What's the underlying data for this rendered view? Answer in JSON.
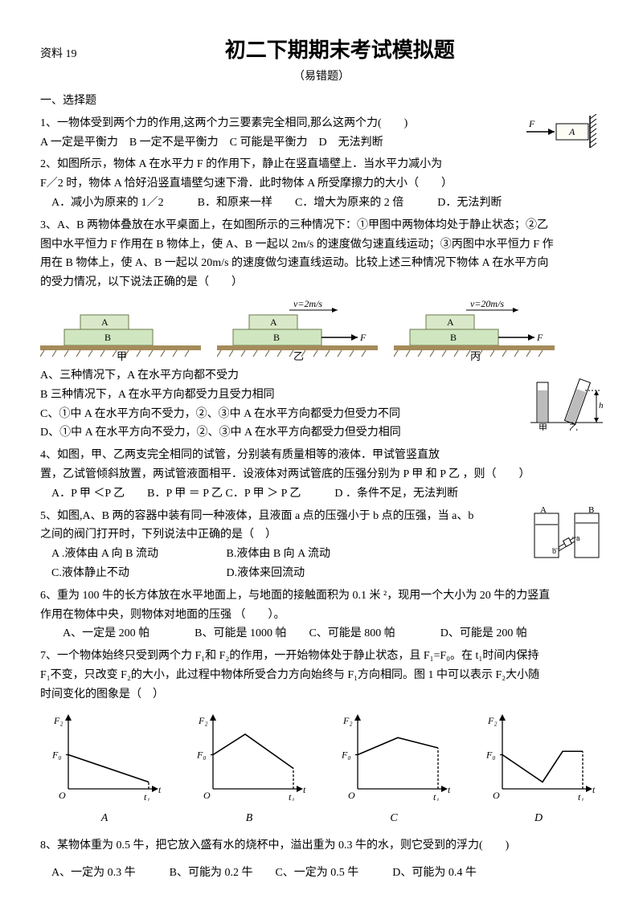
{
  "header": {
    "doc_label": "资料 19",
    "title": "初二下期期末考试模拟题",
    "subtitle": "（易错题）"
  },
  "section1": "一、选择题",
  "q1": {
    "text": "1、一物体受到两个力的作用,这两个力三要素完全相同,那么这两个力(　　)",
    "opts": "A 一定是平衡力　B 一定不是平衡力　C 可能是平衡力　D　无法判断",
    "fig": {
      "F": "F",
      "A": "A",
      "box_fill": "#fdfdf6",
      "arrow_color": "#000"
    }
  },
  "q2": {
    "l1": "2、如图所示，物体 A 在水平力 F 的作用下，静止在竖直墙壁上．当水平力减小为",
    "l2": "F／2 时，物体 A 恰好沿竖直墙壁匀速下滑．此时物体 A 所受摩擦力的大小（　　）",
    "opts": "　A．减小为原来的 1／2　　　B．和原来一样　　C．增大为原来的 2 倍　　　D．无法判断"
  },
  "q3": {
    "l1": "3、A、B 两物体叠放在水平桌面上，在如图所示的三种情况下：①甲图中两物体均处于静止状态；②乙",
    "l2": "图中水平恒力 F 作用在 B 物体上，使 A、B 一起以 2m/s 的速度做匀速直线运动；③丙图中水平恒力 F 作",
    "l3": "用在 B 物体上，使 A、B 一起以 20m/s 的速度做匀速直线运动。比较上述三种情况下物体 A 在水平方向",
    "l4": "的受力情况，以下说法正确的是（　　）",
    "fig": {
      "ground": "#a58b5a",
      "blockA": "#d9e8c8",
      "blockB": "#cfe6c0",
      "lblA": "A",
      "lblB": "B",
      "lblF": "F",
      "v2": "v=2m/s",
      "v20": "v=20m/s",
      "cap1": "甲",
      "cap2": "乙",
      "cap3": "丙"
    },
    "oA": "A、三种情况下，A 在水平方向都不受力",
    "oB": "B 三种情况下，A 在水平方向都受力且受力相同",
    "oC": "C、①中 A 在水平方向不受力，②、③中 A 在水平方向都受力但受力不同",
    "oD": "D、①中 A 在水平方向不受力，②、③中 A 在水平方向都受力但受力相同"
  },
  "q4": {
    "l1": "4、如图，甲、乙两支完全相同的试管，分别装有质量相等的液体．甲试管竖直放",
    "l2": "置，乙试管倾斜放置，两试管液面相平．设液体对两试管底的压强分别为 P 甲 和 P 乙 ，则（　　）",
    "opts": "　A．P 甲 ＜P 乙　　B．P 甲 ＝ P 乙 C．P 甲 ＞ P 乙　　　D ．条件不足，无法判断",
    "fig": {
      "fill": "#bdbbbb",
      "h": "h",
      "cap1": "甲",
      "cap2": "乙"
    }
  },
  "q5": {
    "l1": "5、如图,A、B 两的容器中装有同一种液体，且液面 a 点的压强小于 b 点的压强，当 a、b",
    "l2": " 之间的阀门打开时，下列说法中正确的是（　）",
    "oA": "　A .液体由 A 向 B 流动",
    "oB": "B.液体由 B 向 A 流动",
    "oC": "　C.液体静止不动",
    "oD": "D.液体来回流动",
    "fig": {
      "A": "A",
      "B": "B",
      "a": "a",
      "b": "b"
    }
  },
  "q6": {
    "l1": "6、重为 100 牛的长方体放在水平地面上，与地面的接触面积为 0.1 米 ²，现用一个大小为 20 牛的力竖直",
    "l2": "作用在物体中央，则物体对地面的压强 （　　）。",
    "opts": "　　A、一定是 200 帕　　　　B、可能是 1000 帕　　C、可能是 800 帕　　　　D、可能是 200 帕"
  },
  "q7": {
    "l1": "7、一个物体始终只受到两个力 F₁和 F₂的作用，一开始物体处于静止状态，且 F₁=F₀。在 t₁时间内保持",
    "l2": "F₁不变，只改变 F₂的大小，此过程中物体所受合力方向始终与 F₁方向相同。图 1 中可以表示 F₂大小随",
    "l3": "时间变化的图象是（　）",
    "axis": {
      "y": "F₂",
      "ymark": "F₀",
      "x": "t",
      "xmark": "t₁",
      "O": "O"
    },
    "labels": {
      "A": "A",
      "B": "B",
      "C": "C",
      "D": "D"
    },
    "colors": {
      "axis": "#000",
      "line": "#000"
    },
    "graphs": {
      "A": [
        [
          0,
          50
        ],
        [
          100,
          10
        ]
      ],
      "B": [
        [
          0,
          50
        ],
        [
          40,
          80
        ],
        [
          100,
          30
        ]
      ],
      "C": [
        [
          0,
          50
        ],
        [
          50,
          75
        ],
        [
          100,
          60
        ]
      ],
      "D": [
        [
          0,
          50
        ],
        [
          50,
          10
        ],
        [
          75,
          55
        ],
        [
          100,
          55
        ]
      ]
    }
  },
  "q8": {
    "l1": "8、某物体重为 0.5 牛，把它放入盛有水的烧杯中，溢出重为 0.3 牛的水，则它受到的浮力(　　)",
    "opts": "　A、一定为 0.3 牛　　　B、可能为 0.2 牛　　C、一定为 0.5 牛　　　D、可能为 0.4 牛"
  }
}
